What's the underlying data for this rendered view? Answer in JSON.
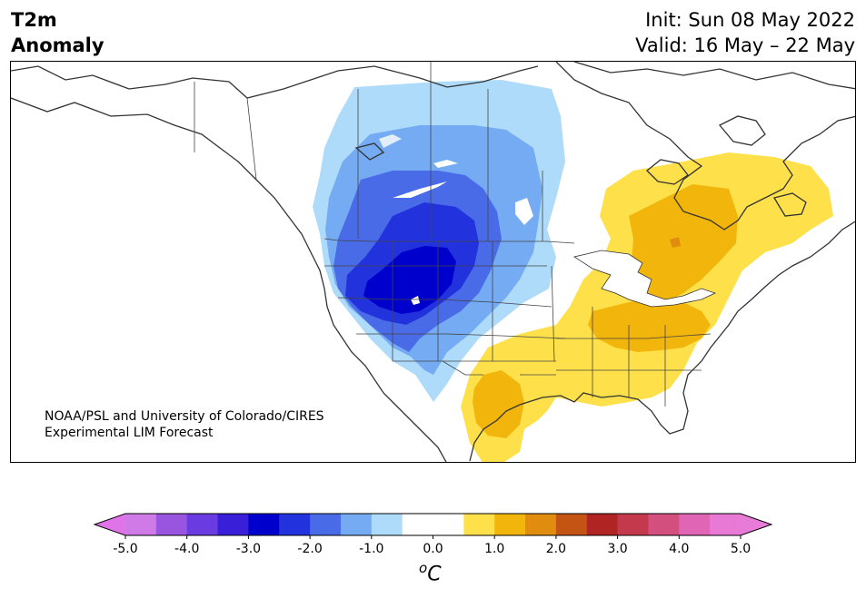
{
  "title": {
    "left_line1": "T2m",
    "left_line2": "Anomaly",
    "init": "Init: Sun 08 May 2022",
    "valid": "Valid: 16 May – 22 May"
  },
  "credit": {
    "line1": "NOAA/PSL and University of Colorado/CIRES",
    "line2": "Experimental LIM Forecast"
  },
  "colorbar": {
    "unit_base": "C",
    "unit_sup": "o",
    "ticks": [
      "-5.0",
      "-4.0",
      "-3.0",
      "-2.0",
      "-1.0",
      "0.0",
      "1.0",
      "2.0",
      "3.0",
      "4.0",
      "5.0"
    ],
    "colors": [
      "#d07ae8",
      "#9a55e0",
      "#6a3be0",
      "#3a1fd8",
      "#0000cc",
      "#2233dd",
      "#4a6be8",
      "#74abf2",
      "#aedbfa",
      "#ffffff",
      "#ffffff",
      "#fde04a",
      "#f2b50c",
      "#e08c0e",
      "#c45414",
      "#b02424",
      "#c43a4c",
      "#d24f7e",
      "#e065b4",
      "#e87ad6"
    ],
    "extend_low_color": "#e073e8",
    "extend_high_color": "#e87ad8"
  },
  "map": {
    "variable": "2m temperature anomaly",
    "region": "North America",
    "features": [
      {
        "name": "strong-cold-anomaly-northern-rockies",
        "value_range": "-3 to -2.5"
      },
      {
        "name": "cold-anomaly-western-us-canadian-prairies",
        "value_range": "-2 to -0.5"
      },
      {
        "name": "warm-anomaly-eastern-us-ontario-quebec",
        "value_range": "0.5 to 1.5"
      },
      {
        "name": "warm-anomaly-texas-northern-mexico",
        "value_range": "0.5 to 1.5"
      }
    ]
  }
}
